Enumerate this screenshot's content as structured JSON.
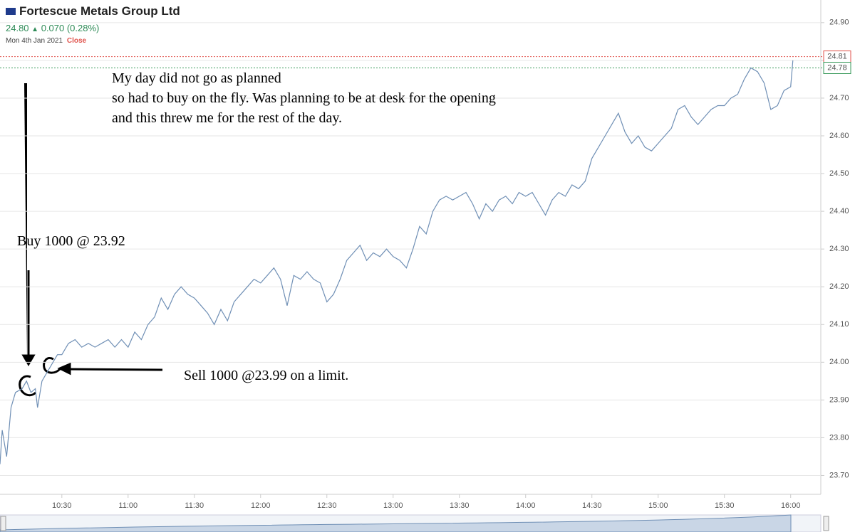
{
  "header": {
    "title": "Fortescue Metals Group Ltd",
    "price": "24.80",
    "change": "0.070 (0.28%)",
    "date": "Mon 4th Jan 2021",
    "status": "Close"
  },
  "annotations": {
    "note": [
      "My day did not go as planned",
      "so had to buy on the fly. Was planning to be at desk for the opening",
      "and this threw me for the rest of the day."
    ],
    "buy": "Buy 1000 @ 23.92",
    "sell": "Sell 1000 @23.99 on a limit."
  },
  "chart_data": {
    "type": "line",
    "color": "#6f8fb5",
    "xlim": [
      "10:02",
      "16:13"
    ],
    "ylim": [
      23.65,
      24.96
    ],
    "xticks": [
      "10:30",
      "11:00",
      "11:30",
      "12:00",
      "12:30",
      "13:00",
      "13:30",
      "14:00",
      "14:30",
      "15:00",
      "15:30",
      "16:00"
    ],
    "yticks": [
      23.7,
      23.8,
      23.9,
      24.0,
      24.1,
      24.2,
      24.3,
      24.4,
      24.5,
      24.6,
      24.7,
      24.8,
      24.9
    ],
    "ytick_labels": [
      "23.70",
      "23.80",
      "23.90",
      "24.00",
      "24.10",
      "24.20",
      "24.30",
      "24.40",
      "24.50",
      "24.60",
      "24.70",
      "24.80",
      "24.90"
    ],
    "grid": true,
    "price_lines": [
      {
        "value": 24.81,
        "color": "#e0524b"
      },
      {
        "value": 24.78,
        "color": "#3a9a5b"
      }
    ],
    "x": [
      "10:02",
      "10:03",
      "10:05",
      "10:07",
      "10:09",
      "10:12",
      "10:14",
      "10:16",
      "10:18",
      "10:19",
      "10:21",
      "10:23",
      "10:26",
      "10:28",
      "10:30",
      "10:33",
      "10:36",
      "10:39",
      "10:42",
      "10:45",
      "10:48",
      "10:51",
      "10:54",
      "10:57",
      "11:00",
      "11:03",
      "11:06",
      "11:09",
      "11:12",
      "11:15",
      "11:18",
      "11:21",
      "11:24",
      "11:27",
      "11:30",
      "11:33",
      "11:36",
      "11:39",
      "11:42",
      "11:45",
      "11:48",
      "11:51",
      "11:54",
      "11:57",
      "12:00",
      "12:03",
      "12:06",
      "12:09",
      "12:12",
      "12:15",
      "12:18",
      "12:21",
      "12:24",
      "12:27",
      "12:30",
      "12:33",
      "12:36",
      "12:39",
      "12:42",
      "12:45",
      "12:48",
      "12:51",
      "12:54",
      "12:57",
      "13:00",
      "13:03",
      "13:06",
      "13:09",
      "13:12",
      "13:15",
      "13:18",
      "13:21",
      "13:24",
      "13:27",
      "13:30",
      "13:33",
      "13:36",
      "13:39",
      "13:42",
      "13:45",
      "13:48",
      "13:51",
      "13:54",
      "13:57",
      "14:00",
      "14:03",
      "14:06",
      "14:09",
      "14:12",
      "14:15",
      "14:18",
      "14:21",
      "14:24",
      "14:27",
      "14:30",
      "14:33",
      "14:36",
      "14:39",
      "14:42",
      "14:45",
      "14:48",
      "14:51",
      "14:54",
      "14:57",
      "15:00",
      "15:03",
      "15:06",
      "15:09",
      "15:12",
      "15:15",
      "15:18",
      "15:21",
      "15:24",
      "15:27",
      "15:30",
      "15:33",
      "15:36",
      "15:39",
      "15:42",
      "15:45",
      "15:48",
      "15:51",
      "15:54",
      "15:57",
      "16:00",
      "16:01"
    ],
    "values": [
      23.73,
      23.82,
      23.75,
      23.88,
      23.92,
      23.93,
      23.95,
      23.92,
      23.93,
      23.88,
      23.95,
      23.97,
      24.0,
      24.02,
      24.02,
      24.05,
      24.06,
      24.04,
      24.05,
      24.04,
      24.05,
      24.06,
      24.04,
      24.06,
      24.04,
      24.08,
      24.06,
      24.1,
      24.12,
      24.17,
      24.14,
      24.18,
      24.2,
      24.18,
      24.17,
      24.15,
      24.13,
      24.1,
      24.14,
      24.11,
      24.16,
      24.18,
      24.2,
      24.22,
      24.21,
      24.23,
      24.25,
      24.22,
      24.15,
      24.23,
      24.22,
      24.24,
      24.22,
      24.21,
      24.16,
      24.18,
      24.22,
      24.27,
      24.29,
      24.31,
      24.27,
      24.29,
      24.28,
      24.3,
      24.28,
      24.27,
      24.25,
      24.3,
      24.36,
      24.34,
      24.4,
      24.43,
      24.44,
      24.43,
      24.44,
      24.45,
      24.42,
      24.38,
      24.42,
      24.4,
      24.43,
      24.44,
      24.42,
      24.45,
      24.44,
      24.45,
      24.42,
      24.39,
      24.43,
      24.45,
      24.44,
      24.47,
      24.46,
      24.48,
      24.54,
      24.57,
      24.6,
      24.63,
      24.66,
      24.61,
      24.58,
      24.6,
      24.57,
      24.56,
      24.58,
      24.6,
      24.62,
      24.67,
      24.68,
      24.65,
      24.63,
      24.65,
      24.67,
      24.68,
      24.68,
      24.7,
      24.71,
      24.75,
      24.78,
      24.77,
      24.74,
      24.67,
      24.68,
      24.72,
      24.73,
      24.8
    ]
  }
}
